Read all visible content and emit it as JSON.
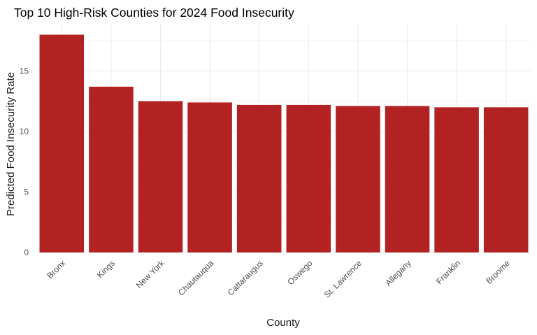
{
  "chart_data": {
    "type": "bar",
    "title": "Top 10 High-Risk Counties for 2024 Food Insecurity",
    "xlabel": "County",
    "ylabel": "Predicted Food Insecurity Rate",
    "categories": [
      "Bronx",
      "Kings",
      "New York",
      "Chautauqua",
      "Cattaraugus",
      "Oswego",
      "St. Lawrence",
      "Allegany",
      "Franklin",
      "Broome"
    ],
    "values": [
      18.0,
      13.7,
      12.5,
      12.4,
      12.2,
      12.2,
      12.1,
      12.1,
      12.0,
      12.0
    ],
    "ylim": [
      0,
      18.9
    ],
    "yticks": [
      0,
      5,
      10,
      15
    ],
    "grid": true,
    "legend": "none",
    "bar_color": "#B22222",
    "grid_color": "#EBEBEB"
  }
}
